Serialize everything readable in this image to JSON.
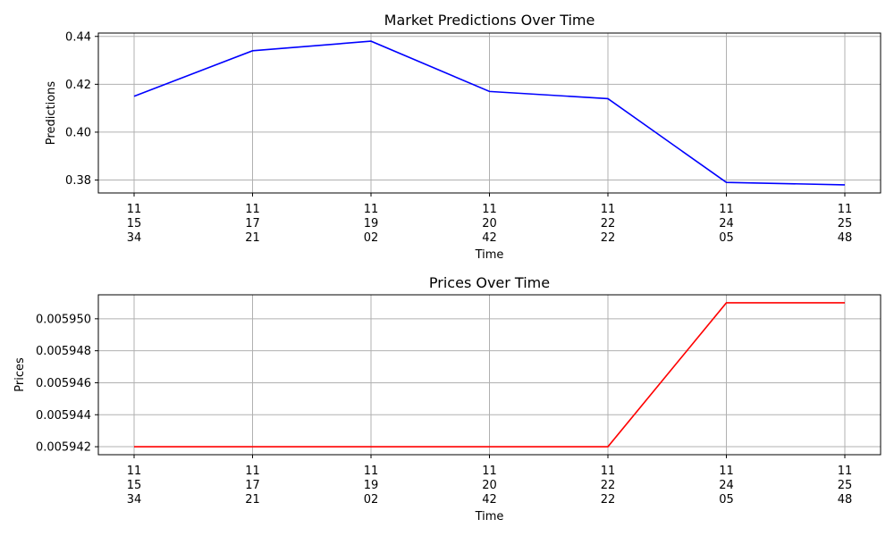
{
  "chart_data": [
    {
      "type": "line",
      "title": "Market Predictions Over Time",
      "xlabel": "Time",
      "ylabel": "Predictions",
      "x_tick_labels": [
        [
          "11",
          "15",
          "34"
        ],
        [
          "11",
          "17",
          "21"
        ],
        [
          "11",
          "19",
          "02"
        ],
        [
          "11",
          "20",
          "42"
        ],
        [
          "11",
          "22",
          "22"
        ],
        [
          "11",
          "24",
          "05"
        ],
        [
          "11",
          "25",
          "48"
        ]
      ],
      "ylim": [
        0.3746,
        0.4414
      ],
      "yticks": [
        0.38,
        0.4,
        0.42,
        0.44
      ],
      "ytick_labels": [
        "0.38",
        "0.40",
        "0.42",
        "0.44"
      ],
      "grid": true,
      "series": [
        {
          "color": "#0000ff",
          "values": [
            0.415,
            0.434,
            0.438,
            0.417,
            0.414,
            0.379,
            0.378
          ]
        }
      ]
    },
    {
      "type": "line",
      "title": "Prices Over Time",
      "xlabel": "Time",
      "ylabel": "Prices",
      "x_tick_labels": [
        [
          "11",
          "15",
          "34"
        ],
        [
          "11",
          "17",
          "21"
        ],
        [
          "11",
          "19",
          "02"
        ],
        [
          "11",
          "20",
          "42"
        ],
        [
          "11",
          "22",
          "22"
        ],
        [
          "11",
          "24",
          "05"
        ],
        [
          "11",
          "25",
          "48"
        ]
      ],
      "ylim": [
        0.0059415,
        0.0059515
      ],
      "yticks": [
        0.005942,
        0.005944,
        0.005946,
        0.005948,
        0.00595
      ],
      "ytick_labels": [
        "0.005942",
        "0.005944",
        "0.005946",
        "0.005948",
        "0.005950"
      ],
      "grid": true,
      "series": [
        {
          "color": "#ff0000",
          "values": [
            0.005942,
            0.005942,
            0.005942,
            0.005942,
            0.005942,
            0.005951,
            0.005951
          ]
        }
      ]
    }
  ]
}
